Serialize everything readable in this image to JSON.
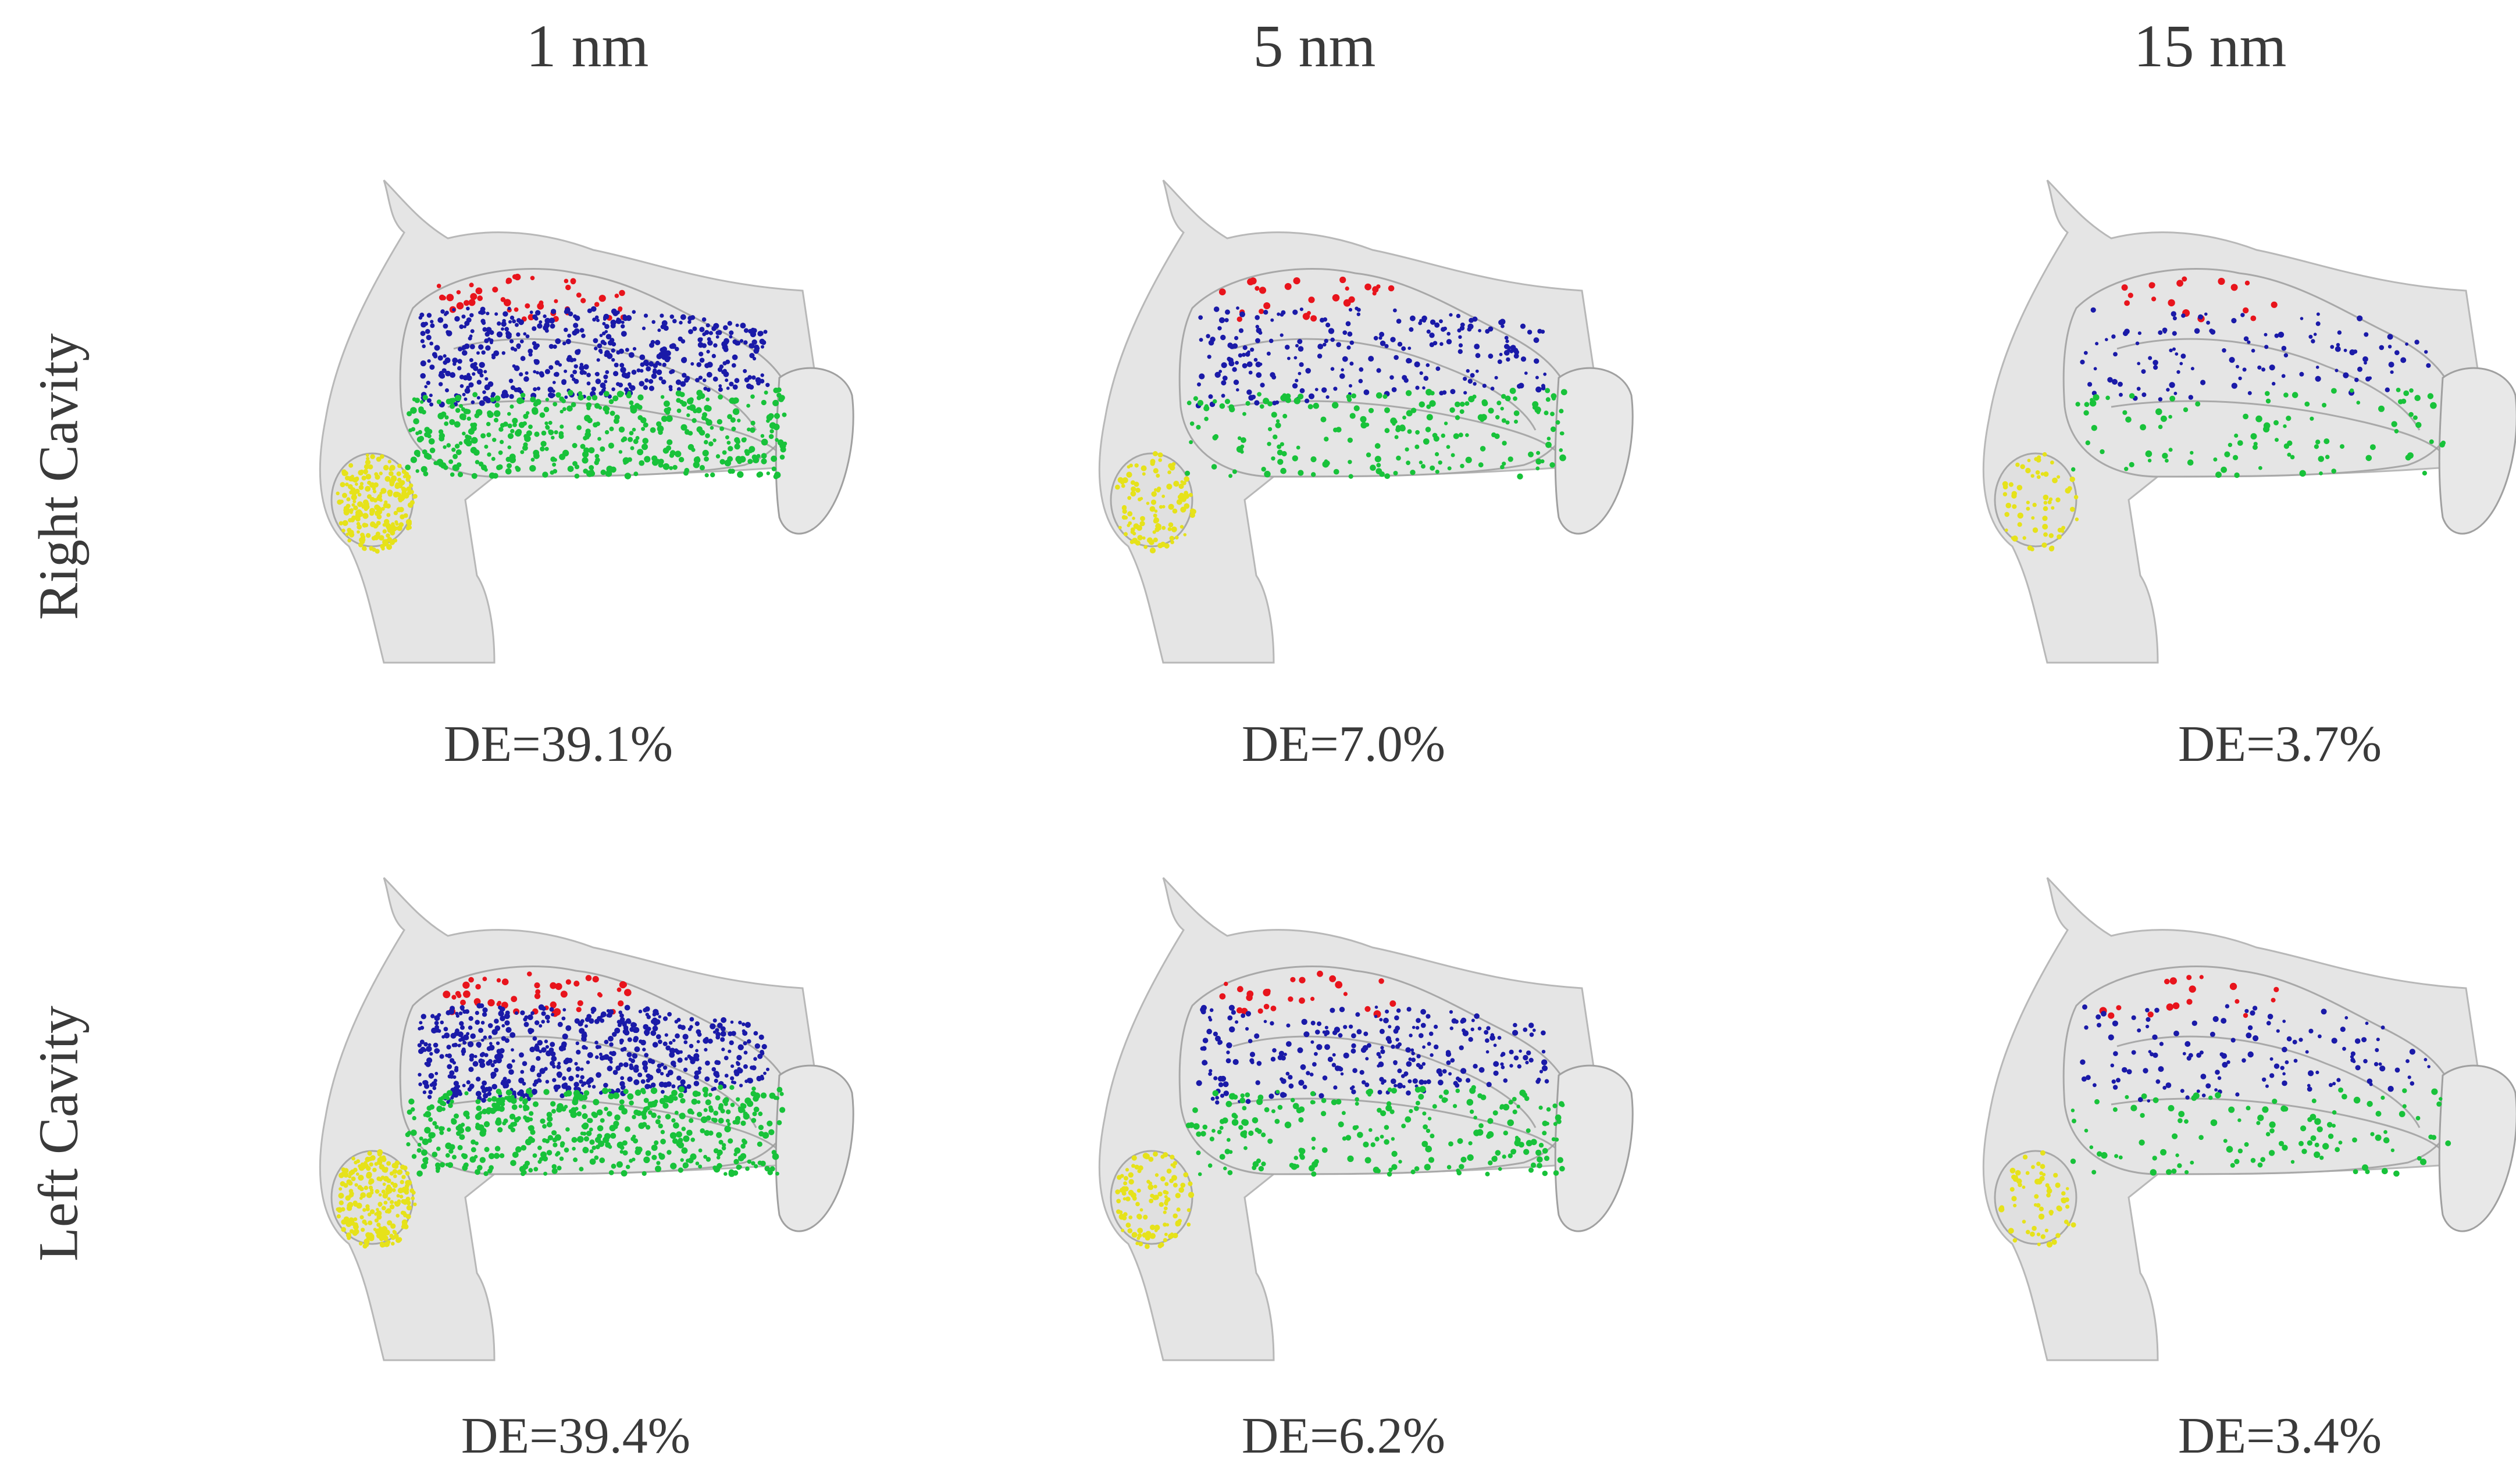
{
  "columns": [
    {
      "label": "1 nm"
    },
    {
      "label": "5 nm"
    },
    {
      "label": "15 nm"
    }
  ],
  "rows": [
    {
      "label": "Right Cavity",
      "panels": [
        {
          "de": "DE=39.1%",
          "density": 1.0
        },
        {
          "de": "DE=7.0%",
          "density": 0.45
        },
        {
          "de": "DE=3.7%",
          "density": 0.22
        }
      ]
    },
    {
      "label": "Left Cavity",
      "panels": [
        {
          "de": "DE=39.4%",
          "density": 1.0
        },
        {
          "de": "DE=6.2%",
          "density": 0.45
        },
        {
          "de": "DE=3.4%",
          "density": 0.22
        }
      ]
    }
  ],
  "colors": {
    "region_top": "#e8141c",
    "region_upper": "#1a1aa8",
    "region_lower": "#18c23a",
    "region_front": "#e6e21a",
    "tissue": "#cfcfcf",
    "text": "#3a3a3a"
  }
}
